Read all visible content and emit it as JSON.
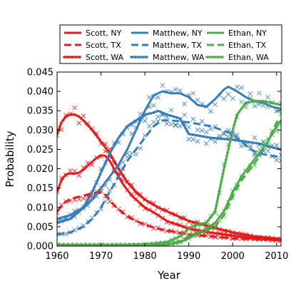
{
  "chart_data": {
    "type": "line",
    "title": "",
    "xlabel": "Year",
    "ylabel": "Probability",
    "xlim": [
      1960,
      2011
    ],
    "ylim": [
      0.0,
      0.045
    ],
    "xticks": [
      1960,
      1970,
      1980,
      1990,
      2000,
      2010
    ],
    "yticks": [
      "0.000",
      "0.005",
      "0.010",
      "0.015",
      "0.020",
      "0.025",
      "0.030",
      "0.035",
      "0.040",
      "0.045"
    ],
    "grid": false,
    "legend_position": "top, above plot",
    "colors": {
      "Scott": "#e41a1c",
      "Matthew": "#377eb8",
      "Ethan": "#4daf4a"
    },
    "series": [
      {
        "name": "Scott, NY",
        "name_group": "Scott",
        "linestyle": "solid",
        "x": [
          1960,
          1961,
          1962,
          1963,
          1964,
          1965,
          1966,
          1967,
          1968,
          1969,
          1970,
          1971,
          1972,
          1973,
          1975,
          1977,
          1980,
          1983,
          1985,
          1990,
          1995,
          2000,
          2005,
          2011
        ],
        "y": [
          0.014,
          0.017,
          0.0185,
          0.0188,
          0.0187,
          0.019,
          0.0197,
          0.0208,
          0.0218,
          0.0228,
          0.0235,
          0.0233,
          0.022,
          0.02,
          0.016,
          0.013,
          0.01,
          0.008,
          0.0065,
          0.0045,
          0.0035,
          0.0027,
          0.002,
          0.0015
        ]
      },
      {
        "name": "Scott, TX",
        "name_group": "Scott",
        "linestyle": "dashed",
        "x": [
          1960,
          1962,
          1964,
          1966,
          1968,
          1970,
          1971,
          1972,
          1973,
          1975,
          1977,
          1980,
          1983,
          1985,
          1990,
          1995,
          2000,
          2005,
          2011
        ],
        "y": [
          0.009,
          0.0115,
          0.0125,
          0.013,
          0.0137,
          0.0138,
          0.0133,
          0.012,
          0.0105,
          0.0085,
          0.007,
          0.0055,
          0.0045,
          0.004,
          0.003,
          0.0025,
          0.002,
          0.0018,
          0.0015
        ]
      },
      {
        "name": "Scott, WA",
        "name_group": "Scott",
        "linestyle": "dotted",
        "x": [
          1960,
          1961,
          1962,
          1963,
          1964,
          1965,
          1966,
          1968,
          1970,
          1972,
          1974,
          1976,
          1978,
          1980,
          1983,
          1985,
          1990,
          1995,
          2000,
          2005,
          2011
        ],
        "y": [
          0.029,
          0.032,
          0.0335,
          0.034,
          0.034,
          0.0335,
          0.0325,
          0.03,
          0.027,
          0.024,
          0.02,
          0.0165,
          0.014,
          0.012,
          0.01,
          0.009,
          0.0065,
          0.005,
          0.0035,
          0.0025,
          0.0018
        ]
      },
      {
        "name": "Matthew, NY",
        "name_group": "Matthew",
        "linestyle": "solid",
        "x": [
          1960,
          1963,
          1966,
          1968,
          1970,
          1972,
          1974,
          1976,
          1978,
          1980,
          1982,
          1984,
          1986,
          1988,
          1990,
          1992,
          1994,
          1996,
          1998,
          1999,
          2001,
          2003,
          2005,
          2007,
          2009,
          2011
        ],
        "y": [
          0.007,
          0.008,
          0.01,
          0.012,
          0.015,
          0.018,
          0.021,
          0.025,
          0.03,
          0.035,
          0.039,
          0.04,
          0.0395,
          0.0395,
          0.0385,
          0.0365,
          0.036,
          0.038,
          0.0405,
          0.0412,
          0.04,
          0.0385,
          0.0375,
          0.037,
          0.036,
          0.0355
        ]
      },
      {
        "name": "Matthew, TX",
        "name_group": "Matthew",
        "linestyle": "dashed",
        "x": [
          1960,
          1963,
          1966,
          1968,
          1970,
          1972,
          1974,
          1976,
          1978,
          1980,
          1982,
          1984,
          1986,
          1990,
          1995,
          2000,
          2002,
          2004,
          2006,
          2008,
          2011
        ],
        "y": [
          0.003,
          0.0035,
          0.005,
          0.007,
          0.01,
          0.014,
          0.018,
          0.022,
          0.025,
          0.028,
          0.031,
          0.0325,
          0.0325,
          0.032,
          0.031,
          0.029,
          0.027,
          0.025,
          0.024,
          0.0235,
          0.023
        ]
      },
      {
        "name": "Matthew, WA",
        "name_group": "Matthew",
        "linestyle": "dotted",
        "x": [
          1960,
          1963,
          1966,
          1968,
          1970,
          1972,
          1974,
          1976,
          1978,
          1980,
          1982,
          1983,
          1985,
          1988,
          1990,
          1995,
          2000,
          2003,
          2006,
          2009,
          2011
        ],
        "y": [
          0.006,
          0.007,
          0.01,
          0.014,
          0.019,
          0.024,
          0.028,
          0.031,
          0.0325,
          0.034,
          0.0345,
          0.035,
          0.034,
          0.033,
          0.029,
          0.028,
          0.0275,
          0.027,
          0.0265,
          0.0255,
          0.025
        ]
      },
      {
        "name": "Ethan, NY",
        "name_group": "Ethan",
        "linestyle": "solid",
        "x": [
          1960,
          1965,
          1970,
          1975,
          1980,
          1985,
          1988,
          1990,
          1992,
          1994,
          1996,
          1998,
          2000,
          2002,
          2004,
          2006,
          2008,
          2010,
          2011
        ],
        "y": [
          0.0002,
          0.0002,
          0.0002,
          0.0002,
          0.0002,
          0.0004,
          0.001,
          0.002,
          0.0032,
          0.0045,
          0.006,
          0.009,
          0.014,
          0.018,
          0.021,
          0.024,
          0.027,
          0.031,
          0.0325
        ]
      },
      {
        "name": "Ethan, TX",
        "name_group": "Ethan",
        "linestyle": "dashed",
        "x": [
          1960,
          1965,
          1970,
          1975,
          1980,
          1985,
          1988,
          1990,
          1992,
          1994,
          1996,
          1998,
          2000,
          2002,
          2004,
          2006,
          2008,
          2010,
          2011
        ],
        "y": [
          0.0001,
          0.0001,
          0.0001,
          0.0001,
          0.0002,
          0.0005,
          0.0012,
          0.0025,
          0.0035,
          0.004,
          0.005,
          0.008,
          0.013,
          0.017,
          0.02,
          0.023,
          0.027,
          0.032,
          0.033
        ]
      },
      {
        "name": "Ethan, WA",
        "name_group": "Ethan",
        "linestyle": "dotted",
        "x": [
          1960,
          1965,
          1970,
          1975,
          1980,
          1985,
          1988,
          1990,
          1992,
          1994,
          1996,
          1998,
          2000,
          2001,
          2003,
          2005,
          2007,
          2009,
          2011
        ],
        "y": [
          0.0003,
          0.0003,
          0.0003,
          0.0003,
          0.0004,
          0.001,
          0.0025,
          0.0045,
          0.0055,
          0.006,
          0.009,
          0.02,
          0.03,
          0.034,
          0.037,
          0.0375,
          0.0375,
          0.037,
          0.0365
        ]
      }
    ],
    "legend": {
      "columns": [
        [
          "Scott, NY",
          "Scott, TX",
          "Scott, WA"
        ],
        [
          "Matthew, NY",
          "Matthew, TX",
          "Matthew, WA"
        ],
        [
          "Ethan, NY",
          "Ethan, TX",
          "Ethan, WA"
        ]
      ]
    }
  }
}
